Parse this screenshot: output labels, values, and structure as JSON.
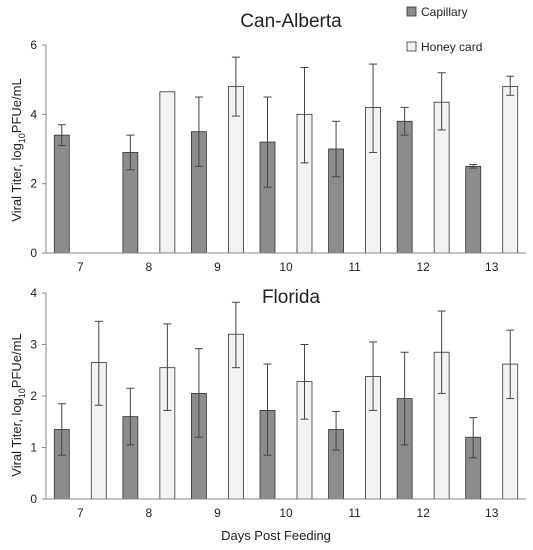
{
  "legend": [
    {
      "name": "Capillary",
      "color": "#8c8c8c"
    },
    {
      "name": "Honey card",
      "color": "#f2f2f2"
    }
  ],
  "ylabel_prefix": "Viral Titer, log",
  "ylabel_sub": "10",
  "ylabel_suffix": "PFUe/mL",
  "xlabel": "Days Post Feeding",
  "chart_data": [
    {
      "type": "bar",
      "title": "Can-Alberta",
      "categories": [
        "7",
        "8",
        "9",
        "10",
        "11",
        "12",
        "13"
      ],
      "ylim": [
        0,
        6
      ],
      "yticks": [
        "0",
        "2",
        "4",
        "6"
      ],
      "grid": false,
      "legend_position": "top-right",
      "series": [
        {
          "name": "Capillary",
          "values": [
            3.4,
            2.9,
            3.5,
            3.2,
            3.0,
            3.8,
            2.5
          ],
          "err_low": [
            3.1,
            2.4,
            2.5,
            1.9,
            2.2,
            3.4,
            2.45
          ],
          "err_high": [
            3.7,
            3.4,
            4.5,
            4.5,
            3.8,
            4.2,
            2.55
          ]
        },
        {
          "name": "Honey card",
          "values": [
            null,
            4.65,
            4.8,
            4.0,
            4.2,
            4.35,
            4.8
          ],
          "err_low": [
            null,
            null,
            3.95,
            2.6,
            2.9,
            3.55,
            4.55
          ],
          "err_high": [
            null,
            null,
            5.65,
            5.35,
            5.45,
            5.2,
            5.1
          ]
        }
      ]
    },
    {
      "type": "bar",
      "title": "Florida",
      "categories": [
        "7",
        "8",
        "9",
        "10",
        "11",
        "12",
        "13"
      ],
      "ylim": [
        0,
        4
      ],
      "yticks": [
        "0",
        "1",
        "2",
        "3",
        "4"
      ],
      "grid": false,
      "series": [
        {
          "name": "Capillary",
          "values": [
            1.35,
            1.6,
            2.05,
            1.72,
            1.35,
            1.95,
            1.2
          ],
          "err_low": [
            0.85,
            1.05,
            1.2,
            0.85,
            0.95,
            1.05,
            0.8
          ],
          "err_high": [
            1.85,
            2.15,
            2.92,
            2.62,
            1.7,
            2.85,
            1.58
          ]
        },
        {
          "name": "Honey card",
          "values": [
            2.65,
            2.55,
            3.2,
            2.28,
            2.38,
            2.85,
            2.62
          ],
          "err_low": [
            1.82,
            1.72,
            2.55,
            1.55,
            1.72,
            2.05,
            1.95
          ],
          "err_high": [
            3.45,
            3.4,
            3.82,
            3.0,
            3.05,
            3.65,
            3.28
          ]
        }
      ]
    }
  ]
}
